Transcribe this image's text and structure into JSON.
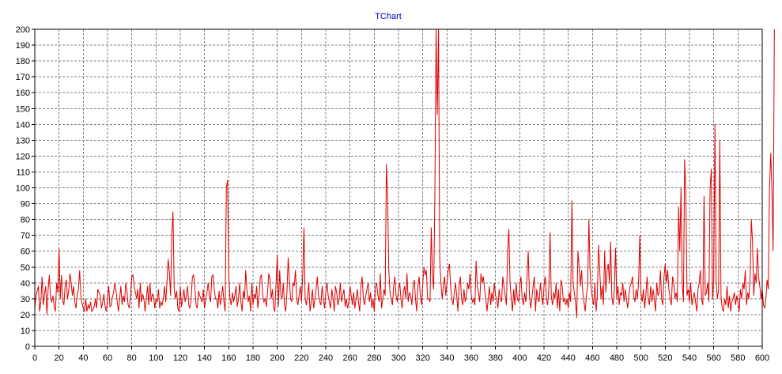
{
  "chart_data": {
    "type": "line",
    "title": "TChart",
    "xlabel": "",
    "ylabel": "",
    "xlim": [
      0,
      600
    ],
    "ylim": [
      0,
      200
    ],
    "x_ticks": [
      0,
      20,
      40,
      60,
      80,
      100,
      120,
      140,
      160,
      180,
      200,
      220,
      240,
      260,
      280,
      300,
      320,
      340,
      360,
      380,
      400,
      420,
      440,
      460,
      480,
      500,
      520,
      540,
      560,
      580,
      600
    ],
    "y_ticks": [
      0,
      10,
      20,
      30,
      40,
      50,
      60,
      70,
      80,
      90,
      100,
      110,
      120,
      130,
      140,
      150,
      160,
      170,
      180,
      190,
      200
    ],
    "grid": true,
    "legend": "none",
    "series": [
      {
        "color": "#dd0000",
        "x_start": 0,
        "x_step": 1,
        "values": [
          24,
          32,
          35,
          38,
          22,
          28,
          44,
          26,
          33,
          38,
          20,
          36,
          45,
          30,
          28,
          32,
          25,
          22,
          40,
          34,
          62,
          30,
          45,
          29,
          26,
          38,
          42,
          30,
          35,
          46,
          40,
          32,
          38,
          28,
          24,
          33,
          36,
          48,
          32,
          27,
          24,
          22,
          30,
          22,
          26,
          24,
          28,
          22,
          23,
          25,
          30,
          24,
          36,
          34,
          32,
          24,
          28,
          33,
          25,
          22,
          30,
          38,
          25,
          26,
          31,
          34,
          40,
          35,
          28,
          22,
          30,
          38,
          26,
          32,
          28,
          40,
          35,
          26,
          24,
          32,
          44,
          45,
          38,
          34,
          30,
          36,
          24,
          40,
          28,
          33,
          30,
          22,
          30,
          38,
          26,
          40,
          28,
          33,
          32,
          24,
          30,
          28,
          36,
          24,
          28,
          26,
          30,
          38,
          28,
          40,
          55,
          47,
          32,
          70,
          85,
          36,
          30,
          35,
          24,
          22,
          38,
          25,
          30,
          36,
          28,
          32,
          38,
          26,
          24,
          30,
          44,
          45,
          38,
          26,
          24,
          35,
          32,
          30,
          28,
          36,
          24,
          30,
          34,
          40,
          32,
          28,
          44,
          45,
          36,
          30,
          30,
          24,
          35,
          26,
          32,
          38,
          28,
          22,
          100,
          105,
          45,
          30,
          26,
          34,
          28,
          32,
          38,
          25,
          30,
          40,
          28,
          22,
          35,
          30,
          48,
          35,
          28,
          32,
          22,
          40,
          26,
          33,
          30,
          38,
          24,
          32,
          44,
          45,
          32,
          28,
          30,
          25,
          34,
          46,
          42,
          30,
          36,
          24,
          22,
          40,
          58,
          25,
          48,
          32,
          30,
          40,
          26,
          22,
          34,
          56,
          42,
          30,
          28,
          40,
          38,
          48,
          30,
          26,
          32,
          38,
          28,
          45,
          75,
          30,
          26,
          32,
          40,
          22,
          28,
          36,
          24,
          30,
          36,
          44,
          32,
          28,
          26,
          38,
          30,
          24,
          34,
          40,
          32,
          28,
          24,
          36,
          30,
          22,
          38,
          34,
          26,
          30,
          40,
          28,
          32,
          36,
          25,
          30,
          24,
          28,
          38,
          32,
          26,
          34,
          24,
          30,
          36,
          28,
          22,
          38,
          44,
          30,
          26,
          32,
          36,
          40,
          28,
          34,
          24,
          30,
          22,
          38,
          40,
          32,
          28,
          46,
          24,
          30,
          36,
          32,
          115,
          94,
          48,
          34,
          30,
          26,
          38,
          44,
          32,
          28,
          36,
          40,
          30,
          24,
          34,
          38,
          30,
          46,
          28,
          34,
          32,
          26,
          38,
          42,
          30,
          22,
          38,
          44,
          32,
          26,
          40,
          50,
          45,
          48,
          30,
          30,
          28,
          75,
          45,
          36,
          95,
          200,
          146,
          200,
          55,
          40,
          30,
          38,
          44,
          32,
          40,
          48,
          52,
          38,
          30,
          26,
          34,
          40,
          32,
          22,
          38,
          44,
          30,
          26,
          36,
          28,
          32,
          40,
          36,
          46,
          32,
          28,
          30,
          26,
          54,
          38,
          34,
          28,
          46,
          40,
          44,
          36,
          30,
          22,
          30,
          38,
          26,
          34,
          28,
          40,
          32,
          30,
          24,
          36,
          30,
          28,
          44,
          38,
          32,
          26,
          60,
          74,
          40,
          30,
          22,
          36,
          26,
          40,
          30,
          28,
          38,
          44,
          30,
          26,
          34,
          28,
          45,
          60,
          32,
          24,
          30,
          38,
          44,
          22,
          36,
          30,
          28,
          40,
          32,
          26,
          38,
          44,
          30,
          26,
          36,
          72,
          32,
          26,
          34,
          30,
          40,
          24,
          36,
          22,
          42,
          38,
          28,
          30,
          26,
          30,
          24,
          34,
          28,
          92,
          40,
          34,
          28,
          18,
          60,
          50,
          38,
          48,
          34,
          28,
          22,
          32,
          38,
          80,
          48,
          36,
          30,
          26,
          40,
          22,
          32,
          64,
          48,
          30,
          38,
          26,
          60,
          34,
          48,
          52,
          40,
          66,
          30,
          26,
          36,
          62,
          30,
          38,
          26,
          34,
          32,
          40,
          28,
          36,
          30,
          24,
          32,
          38,
          40,
          44,
          32,
          28,
          36,
          30,
          40,
          70,
          34,
          28,
          36,
          24,
          32,
          44,
          30,
          26,
          38,
          28,
          36,
          30,
          22,
          40,
          32,
          34,
          48,
          30,
          26,
          44,
          52,
          40,
          48,
          36,
          30,
          26,
          44,
          40,
          30,
          34,
          28,
          88,
          60,
          100,
          40,
          28,
          118,
          96,
          32,
          36,
          28,
          40,
          26,
          30,
          34,
          28,
          22,
          36,
          40,
          48,
          30,
          26,
          95,
          32,
          34,
          40,
          28,
          100,
          112,
          30,
          42,
          140,
          40,
          30,
          36,
          130,
          32,
          24,
          22,
          30,
          26,
          38,
          24,
          32,
          22,
          28,
          30,
          34,
          26,
          32,
          28,
          22,
          36,
          30,
          40,
          36,
          48,
          26,
          34,
          30,
          44,
          80,
          66,
          32,
          46,
          40,
          62,
          44,
          38,
          30,
          36,
          26,
          24,
          30,
          42,
          36,
          100,
          122,
          98,
          60,
          200
        ]
      }
    ]
  }
}
